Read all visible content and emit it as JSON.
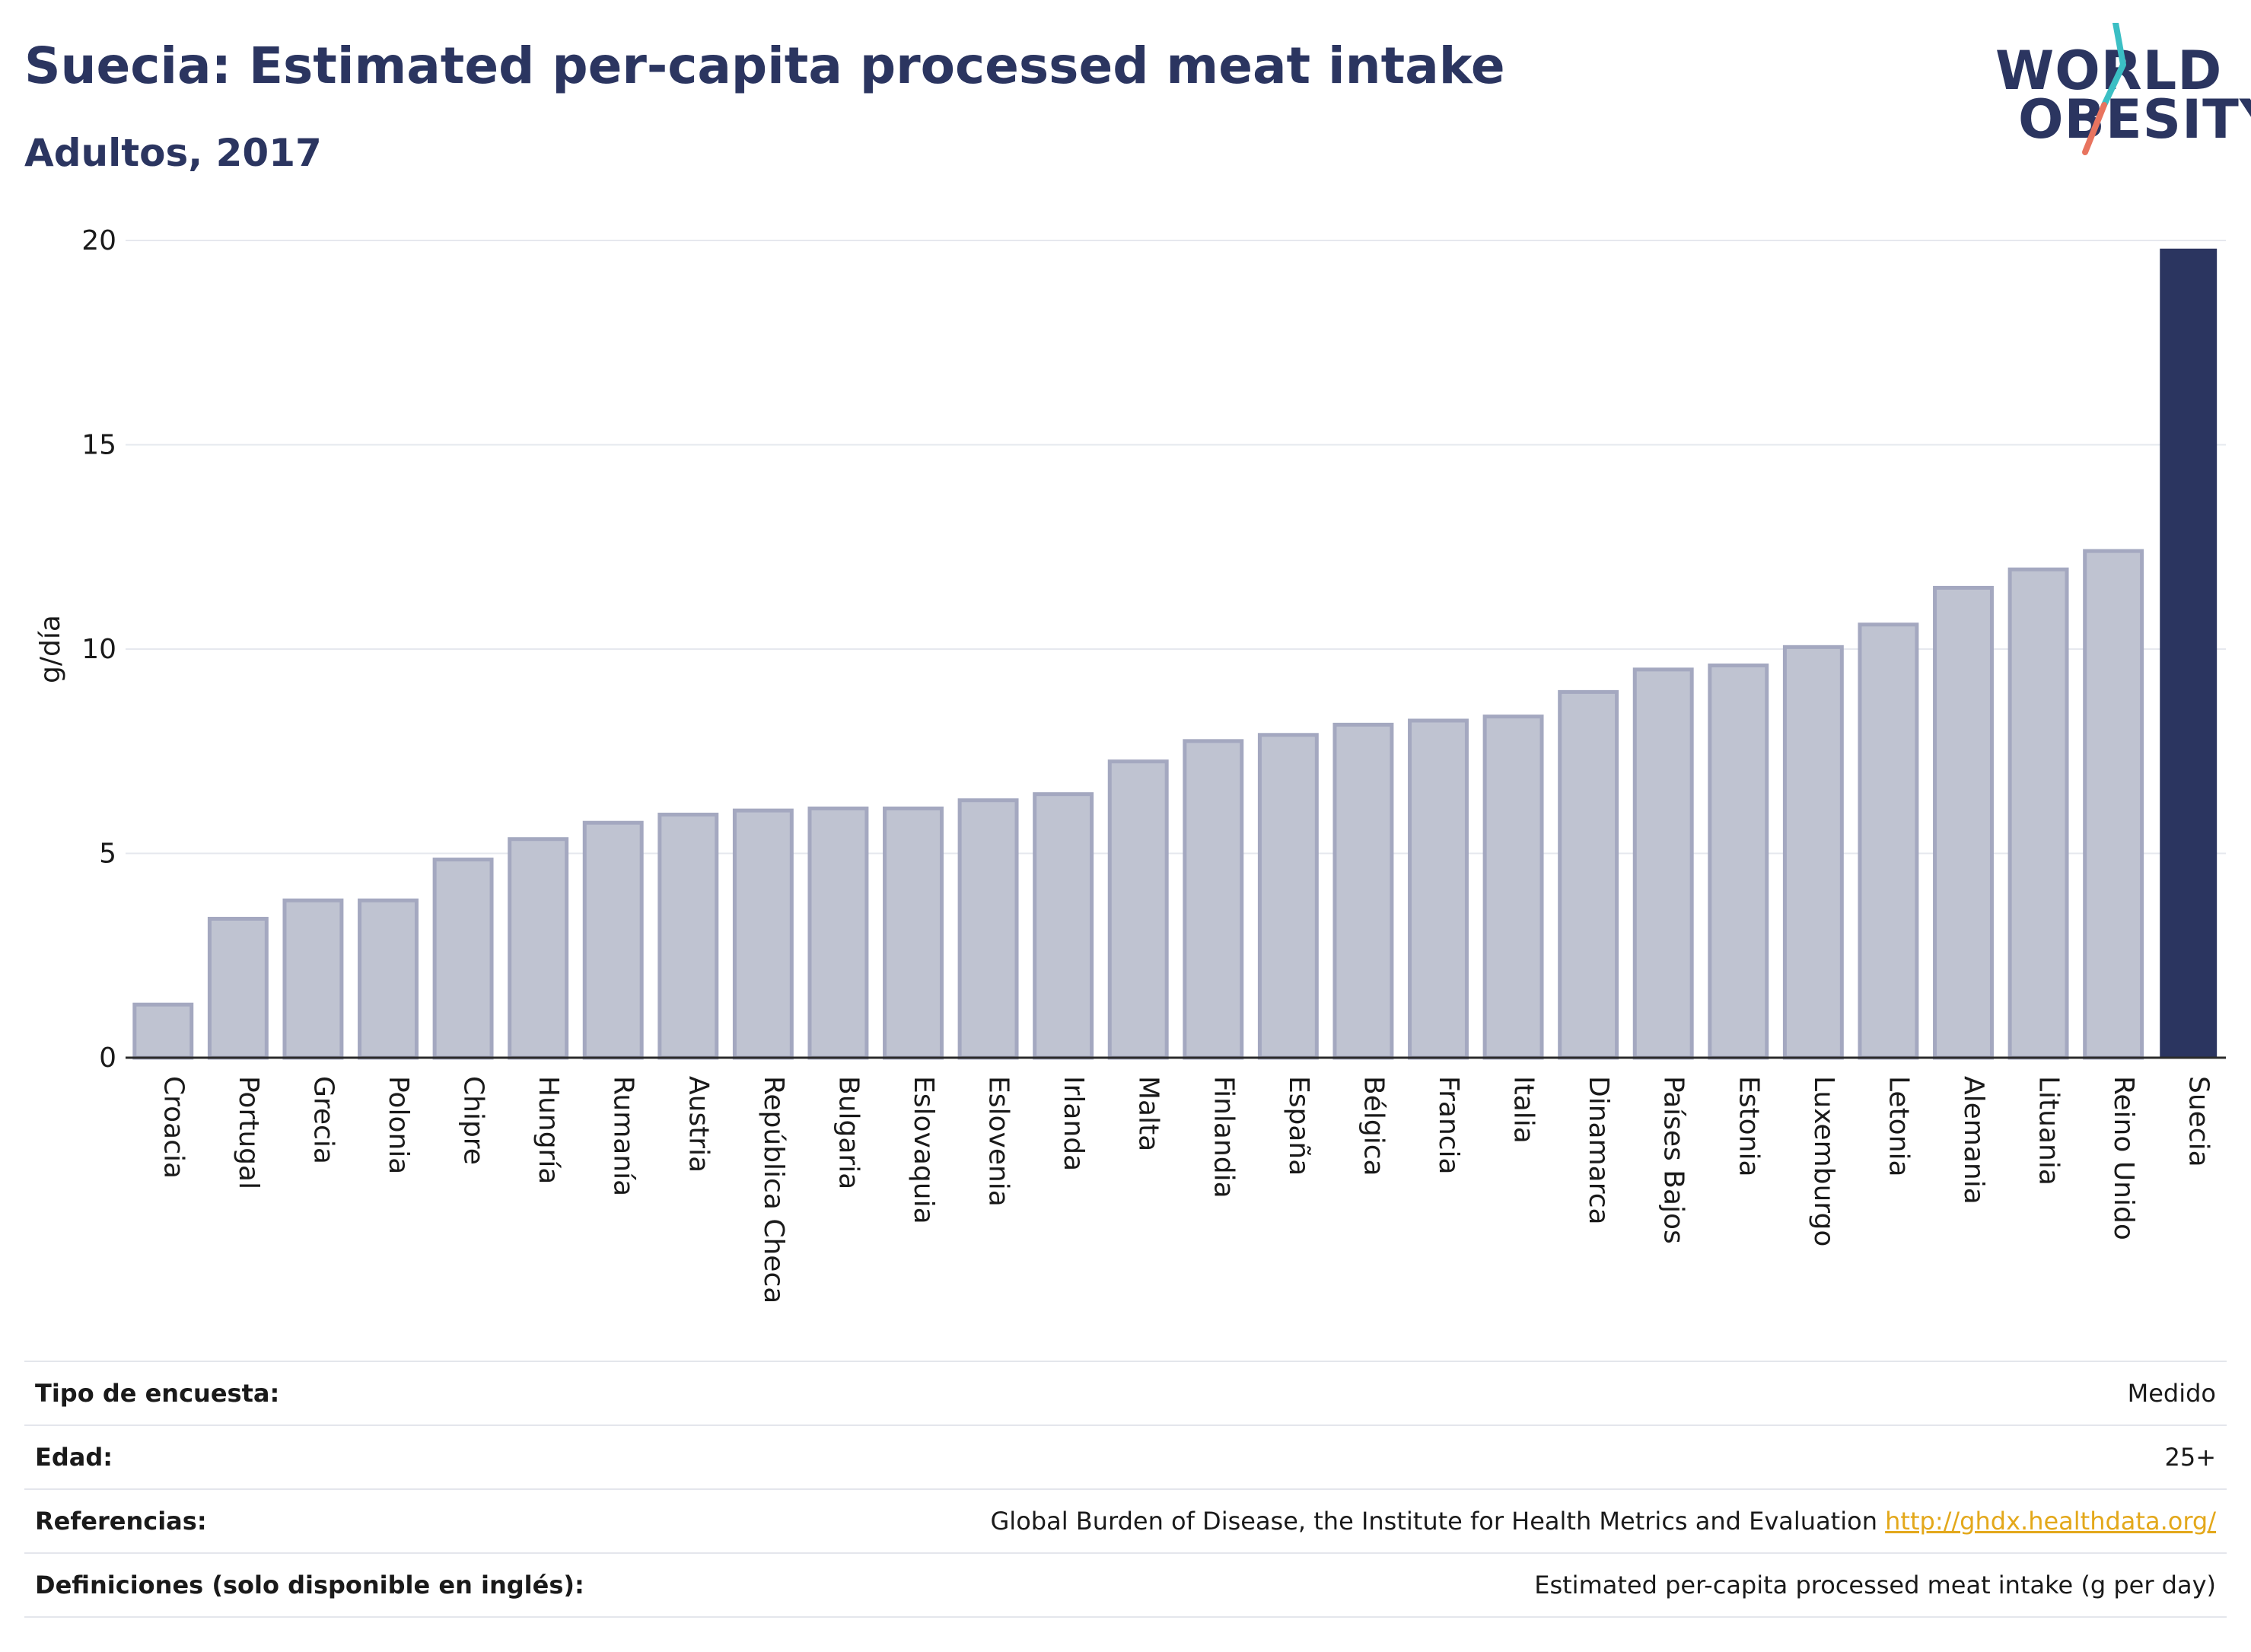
{
  "header": {
    "title": "Suecia: Estimated per-capita processed meat intake",
    "subtitle": "Adultos, 2017"
  },
  "logo": {
    "line1": "WORLD",
    "line2": "OBESITY"
  },
  "chart_data": {
    "type": "bar",
    "ylabel": "g/día",
    "ylim": [
      0,
      20
    ],
    "yticks": [
      0,
      5,
      10,
      15,
      20
    ],
    "grid": true,
    "highlight": "Suecia",
    "colors": {
      "bar": "#bfc3d1",
      "bar_border": "#a4a8c0",
      "highlight": "#2b3560",
      "grid": "#e6e8ee"
    },
    "categories": [
      "Croacia",
      "Portugal",
      "Grecia",
      "Polonia",
      "Chipre",
      "Hungría",
      "Rumanía",
      "Austria",
      "República Checa",
      "Bulgaria",
      "Eslovaquia",
      "Eslovenia",
      "Irlanda",
      "Malta",
      "Finlandia",
      "España",
      "Bélgica",
      "Francia",
      "Italia",
      "Dinamarca",
      "Países Bajos",
      "Estonia",
      "Luxemburgo",
      "Letonia",
      "Alemania",
      "Lituania",
      "Reino Unido",
      "Suecia"
    ],
    "values": [
      1.3,
      3.4,
      3.85,
      3.85,
      4.85,
      5.35,
      5.75,
      5.95,
      6.05,
      6.1,
      6.1,
      6.3,
      6.45,
      7.25,
      7.75,
      7.9,
      8.15,
      8.25,
      8.35,
      8.95,
      9.5,
      9.6,
      10.05,
      10.6,
      11.5,
      11.95,
      12.4,
      19.8
    ]
  },
  "meta": {
    "rows": [
      {
        "label": "Tipo de encuesta:",
        "value": "Medido"
      },
      {
        "label": "Edad:",
        "value": "25+"
      },
      {
        "label": "Referencias:",
        "value": "Global Burden of Disease, the Institute for Health Metrics and Evaluation",
        "link": "http://ghdx.healthdata.org/"
      },
      {
        "label": "Definiciones (solo disponible en inglés):",
        "value": "Estimated per-capita processed meat intake (g per day)"
      }
    ]
  }
}
